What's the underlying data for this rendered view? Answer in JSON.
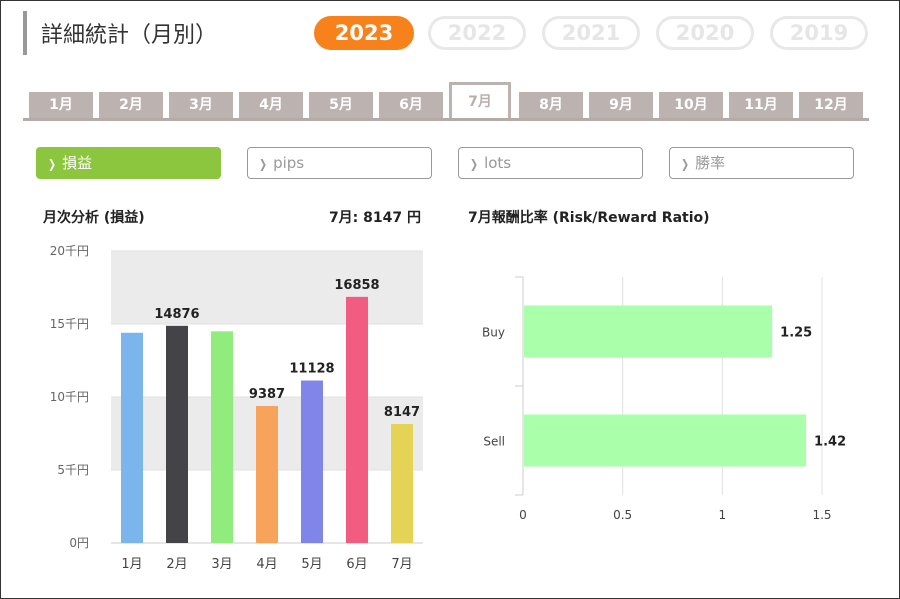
{
  "header": {
    "title": "詳細統計（月別）",
    "years": [
      "2023",
      "2022",
      "2021",
      "2020",
      "2019"
    ],
    "selected_year": "2023"
  },
  "month_tabs": [
    "1月",
    "2月",
    "3月",
    "4月",
    "5月",
    "6月",
    "7月",
    "8月",
    "9月",
    "10月",
    "11月",
    "12月"
  ],
  "selected_month": "7月",
  "filters": [
    {
      "label": "損益",
      "active": true
    },
    {
      "label": "pips",
      "active": false
    },
    {
      "label": "lots",
      "active": false
    },
    {
      "label": "勝率",
      "active": false
    }
  ],
  "left_panel": {
    "title": "月次分析 (損益)",
    "summary": "7月:  8147 円"
  },
  "right_panel": {
    "title": "7月報酬比率 (Risk/Reward Ratio)"
  },
  "colors": {
    "year_active": "#f7821b",
    "filter_active": "#8cc63e",
    "tab": "#bcb2b0",
    "bar_hbar": "#aaffaa"
  },
  "chart_data": [
    {
      "type": "bar",
      "categories": [
        "1月",
        "2月",
        "3月",
        "4月",
        "5月",
        "6月",
        "7月"
      ],
      "values": [
        14400,
        14876,
        14500,
        9387,
        11128,
        16858,
        8147
      ],
      "data_labels": [
        "",
        "14876",
        "",
        "9387",
        "11128",
        "16858",
        "8147"
      ],
      "bar_colors": [
        "#7cb5ec",
        "#434348",
        "#90ed7d",
        "#f7a35c",
        "#8085e9",
        "#f15c80",
        "#e4d354"
      ],
      "ytick_labels": [
        "0円",
        "5千円",
        "10千円",
        "15千円",
        "20千円"
      ],
      "ylim": [
        0,
        20000
      ],
      "title": "",
      "xlabel": "",
      "ylabel": ""
    },
    {
      "type": "bar",
      "orientation": "horizontal",
      "categories": [
        "Buy",
        "Sell"
      ],
      "values": [
        1.25,
        1.42
      ],
      "data_labels": [
        "1.25",
        "1.42"
      ],
      "xtick_labels": [
        "0",
        "0.5",
        "1",
        "1.5"
      ],
      "xlim": [
        0,
        1.5
      ],
      "title": "",
      "xlabel": "",
      "ylabel": ""
    }
  ]
}
